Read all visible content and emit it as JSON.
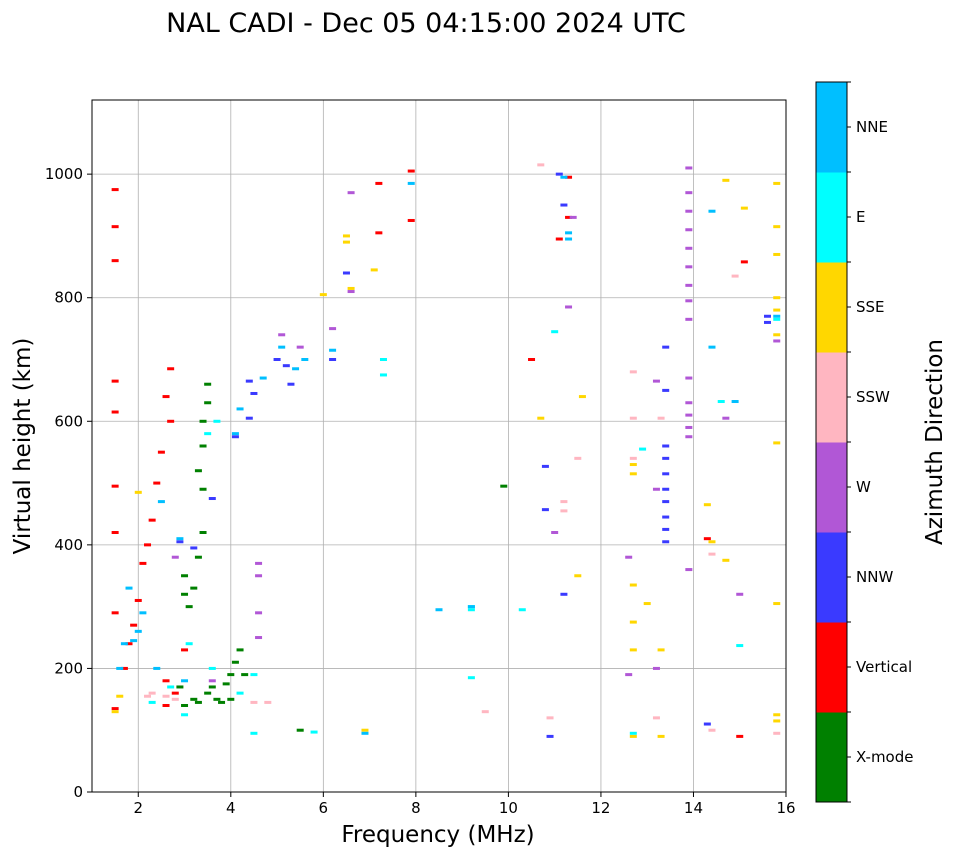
{
  "chart_data": {
    "type": "scatter",
    "title": "NAL CADI - Dec 05 04:15:00 2024 UTC",
    "xlabel": "Frequency (MHz)",
    "ylabel": "Virtual height (km)",
    "xlim": [
      1,
      16
    ],
    "ylim": [
      0,
      1120
    ],
    "x_ticks": [
      2,
      4,
      6,
      8,
      10,
      12,
      14,
      16
    ],
    "y_ticks": [
      0,
      200,
      400,
      600,
      800,
      1000
    ],
    "grid": true,
    "colorbar": {
      "label": "Azimuth Direction",
      "categories": [
        {
          "name": "X-mode",
          "color": "#008000"
        },
        {
          "name": "Vertical",
          "color": "#ff0000"
        },
        {
          "name": "NNW",
          "color": "#3a3aff"
        },
        {
          "name": "W",
          "color": "#b157d6"
        },
        {
          "name": "SSW",
          "color": "#ffb6c1"
        },
        {
          "name": "SSE",
          "color": "#ffd700"
        },
        {
          "name": "E",
          "color": "#00ffff"
        },
        {
          "name": "NNE",
          "color": "#00bfff"
        }
      ]
    },
    "series": [
      {
        "name": "X-mode",
        "points": [
          [
            3.8,
            145
          ],
          [
            4.0,
            150
          ],
          [
            3.5,
            160
          ],
          [
            3.2,
            150
          ],
          [
            3.0,
            140
          ],
          [
            3.6,
            170
          ],
          [
            4.0,
            190
          ],
          [
            4.1,
            210
          ],
          [
            3.9,
            175
          ],
          [
            3.3,
            145
          ],
          [
            2.9,
            170
          ],
          [
            3.0,
            350
          ],
          [
            3.1,
            300
          ],
          [
            3.2,
            330
          ],
          [
            3.3,
            380
          ],
          [
            3.4,
            420
          ],
          [
            3.4,
            490
          ],
          [
            3.3,
            520
          ],
          [
            3.4,
            560
          ],
          [
            3.4,
            600
          ],
          [
            3.5,
            660
          ],
          [
            3.5,
            630
          ],
          [
            3.0,
            320
          ],
          [
            5.5,
            100
          ],
          [
            9.9,
            495
          ],
          [
            4.2,
            230
          ],
          [
            4.3,
            190
          ],
          [
            3.7,
            150
          ]
        ]
      },
      {
        "name": "Vertical",
        "points": [
          [
            1.5,
            975
          ],
          [
            1.5,
            915
          ],
          [
            1.5,
            860
          ],
          [
            1.5,
            665
          ],
          [
            1.5,
            615
          ],
          [
            1.5,
            495
          ],
          [
            1.5,
            420
          ],
          [
            1.5,
            290
          ],
          [
            1.5,
            135
          ],
          [
            2.5,
            550
          ],
          [
            2.4,
            500
          ],
          [
            2.3,
            440
          ],
          [
            2.2,
            400
          ],
          [
            2.1,
            370
          ],
          [
            2.0,
            310
          ],
          [
            1.9,
            270
          ],
          [
            1.8,
            240
          ],
          [
            1.7,
            200
          ],
          [
            2.6,
            180
          ],
          [
            3.0,
            230
          ],
          [
            2.8,
            160
          ],
          [
            2.6,
            140
          ],
          [
            10.5,
            700
          ],
          [
            11.1,
            895
          ],
          [
            11.3,
            995
          ],
          [
            11.3,
            930
          ],
          [
            14.3,
            410
          ],
          [
            15.0,
            90
          ],
          [
            15.1,
            858
          ],
          [
            7.9,
            1005
          ],
          [
            7.9,
            925
          ],
          [
            7.2,
            905
          ],
          [
            2.7,
            685
          ],
          [
            2.6,
            640
          ],
          [
            2.7,
            600
          ],
          [
            7.2,
            985
          ]
        ]
      },
      {
        "name": "NNW",
        "points": [
          [
            4.4,
            665
          ],
          [
            4.5,
            645
          ],
          [
            4.4,
            605
          ],
          [
            5.0,
            700
          ],
          [
            5.2,
            690
          ],
          [
            5.3,
            660
          ],
          [
            6.2,
            700
          ],
          [
            6.5,
            840
          ],
          [
            4.1,
            575
          ],
          [
            13.4,
            720
          ],
          [
            13.4,
            650
          ],
          [
            13.4,
            560
          ],
          [
            13.4,
            540
          ],
          [
            13.4,
            490
          ],
          [
            13.4,
            470
          ],
          [
            13.4,
            445
          ],
          [
            13.4,
            425
          ],
          [
            13.4,
            405
          ],
          [
            13.4,
            515
          ],
          [
            14.3,
            110
          ],
          [
            15.6,
            770
          ],
          [
            15.6,
            760
          ],
          [
            10.8,
            527
          ],
          [
            10.8,
            457
          ],
          [
            11.2,
            320
          ],
          [
            11.2,
            950
          ],
          [
            11.1,
            1000
          ],
          [
            3.6,
            475
          ],
          [
            3.2,
            395
          ],
          [
            2.9,
            405
          ],
          [
            10.9,
            90
          ]
        ]
      },
      {
        "name": "W",
        "points": [
          [
            13.9,
            1010
          ],
          [
            13.9,
            970
          ],
          [
            13.9,
            940
          ],
          [
            13.9,
            910
          ],
          [
            13.9,
            880
          ],
          [
            13.9,
            850
          ],
          [
            13.9,
            820
          ],
          [
            13.9,
            795
          ],
          [
            13.9,
            765
          ],
          [
            13.9,
            670
          ],
          [
            13.9,
            630
          ],
          [
            13.9,
            610
          ],
          [
            13.9,
            590
          ],
          [
            13.9,
            575
          ],
          [
            13.9,
            360
          ],
          [
            14.7,
            605
          ],
          [
            15.0,
            320
          ],
          [
            15.8,
            730
          ],
          [
            13.2,
            665
          ],
          [
            13.2,
            200
          ],
          [
            13.2,
            490
          ],
          [
            12.6,
            380
          ],
          [
            12.6,
            190
          ],
          [
            6.6,
            970
          ],
          [
            6.6,
            810
          ],
          [
            6.2,
            750
          ],
          [
            5.5,
            720
          ],
          [
            5.1,
            740
          ],
          [
            4.6,
            370
          ],
          [
            4.6,
            350
          ],
          [
            4.6,
            290
          ],
          [
            4.6,
            250
          ],
          [
            3.6,
            180
          ],
          [
            2.8,
            380
          ],
          [
            11.0,
            420
          ],
          [
            11.4,
            930
          ],
          [
            11.3,
            785
          ]
        ]
      },
      {
        "name": "SSW",
        "points": [
          [
            12.7,
            680
          ],
          [
            12.7,
            605
          ],
          [
            12.7,
            540
          ],
          [
            13.3,
            605
          ],
          [
            14.4,
            385
          ],
          [
            14.4,
            100
          ],
          [
            14.9,
            835
          ],
          [
            15.8,
            95
          ],
          [
            13.2,
            120
          ],
          [
            11.2,
            470
          ],
          [
            11.2,
            455
          ],
          [
            11.5,
            540
          ],
          [
            10.9,
            120
          ],
          [
            9.5,
            130
          ],
          [
            2.2,
            155
          ],
          [
            2.6,
            155
          ],
          [
            2.8,
            150
          ],
          [
            4.5,
            145
          ],
          [
            4.8,
            145
          ],
          [
            2.3,
            160
          ],
          [
            10.7,
            1015
          ]
        ]
      },
      {
        "name": "SSE",
        "points": [
          [
            12.7,
            90
          ],
          [
            12.7,
            230
          ],
          [
            12.7,
            275
          ],
          [
            12.7,
            335
          ],
          [
            12.7,
            515
          ],
          [
            12.7,
            530
          ],
          [
            13.0,
            305
          ],
          [
            13.3,
            90
          ],
          [
            13.3,
            230
          ],
          [
            14.7,
            375
          ],
          [
            14.3,
            465
          ],
          [
            14.4,
            405
          ],
          [
            15.1,
            945
          ],
          [
            15.8,
            985
          ],
          [
            15.8,
            915
          ],
          [
            15.8,
            870
          ],
          [
            15.8,
            800
          ],
          [
            15.8,
            780
          ],
          [
            15.8,
            740
          ],
          [
            15.8,
            565
          ],
          [
            15.8,
            305
          ],
          [
            15.8,
            125
          ],
          [
            15.8,
            115
          ],
          [
            14.7,
            990
          ],
          [
            6.5,
            900
          ],
          [
            6.5,
            890
          ],
          [
            6.6,
            815
          ],
          [
            6.0,
            805
          ],
          [
            7.1,
            845
          ],
          [
            10.7,
            605
          ],
          [
            11.6,
            640
          ],
          [
            11.5,
            350
          ],
          [
            2.0,
            485
          ],
          [
            1.5,
            130
          ],
          [
            1.6,
            155
          ],
          [
            6.9,
            100
          ]
        ]
      },
      {
        "name": "E",
        "points": [
          [
            2.7,
            170
          ],
          [
            3.1,
            240
          ],
          [
            3.6,
            200
          ],
          [
            4.5,
            190
          ],
          [
            4.2,
            160
          ],
          [
            3.7,
            600
          ],
          [
            3.5,
            580
          ],
          [
            4.5,
            95
          ],
          [
            5.8,
            97
          ],
          [
            7.3,
            700
          ],
          [
            7.3,
            675
          ],
          [
            9.2,
            185
          ],
          [
            9.2,
            300
          ],
          [
            9.2,
            295
          ],
          [
            10.3,
            295
          ],
          [
            11.0,
            745
          ],
          [
            12.7,
            95
          ],
          [
            12.9,
            555
          ],
          [
            14.6,
            632
          ],
          [
            15.0,
            237
          ],
          [
            15.8,
            765
          ],
          [
            2.3,
            145
          ],
          [
            3.0,
            125
          ]
        ]
      },
      {
        "name": "NNE",
        "points": [
          [
            2.1,
            290
          ],
          [
            2.0,
            260
          ],
          [
            1.9,
            245
          ],
          [
            1.8,
            330
          ],
          [
            1.6,
            200
          ],
          [
            1.7,
            240
          ],
          [
            2.4,
            200
          ],
          [
            2.5,
            470
          ],
          [
            2.9,
            410
          ],
          [
            4.2,
            620
          ],
          [
            4.7,
            670
          ],
          [
            5.1,
            720
          ],
          [
            5.4,
            685
          ],
          [
            5.6,
            700
          ],
          [
            6.2,
            715
          ],
          [
            8.5,
            295
          ],
          [
            9.2,
            300
          ],
          [
            11.2,
            995
          ],
          [
            11.3,
            895
          ],
          [
            11.3,
            905
          ],
          [
            14.4,
            720
          ],
          [
            14.4,
            940
          ],
          [
            14.9,
            632
          ],
          [
            15.8,
            770
          ],
          [
            7.9,
            985
          ],
          [
            6.9,
            95
          ],
          [
            4.1,
            580
          ],
          [
            3.0,
            180
          ]
        ]
      }
    ]
  }
}
